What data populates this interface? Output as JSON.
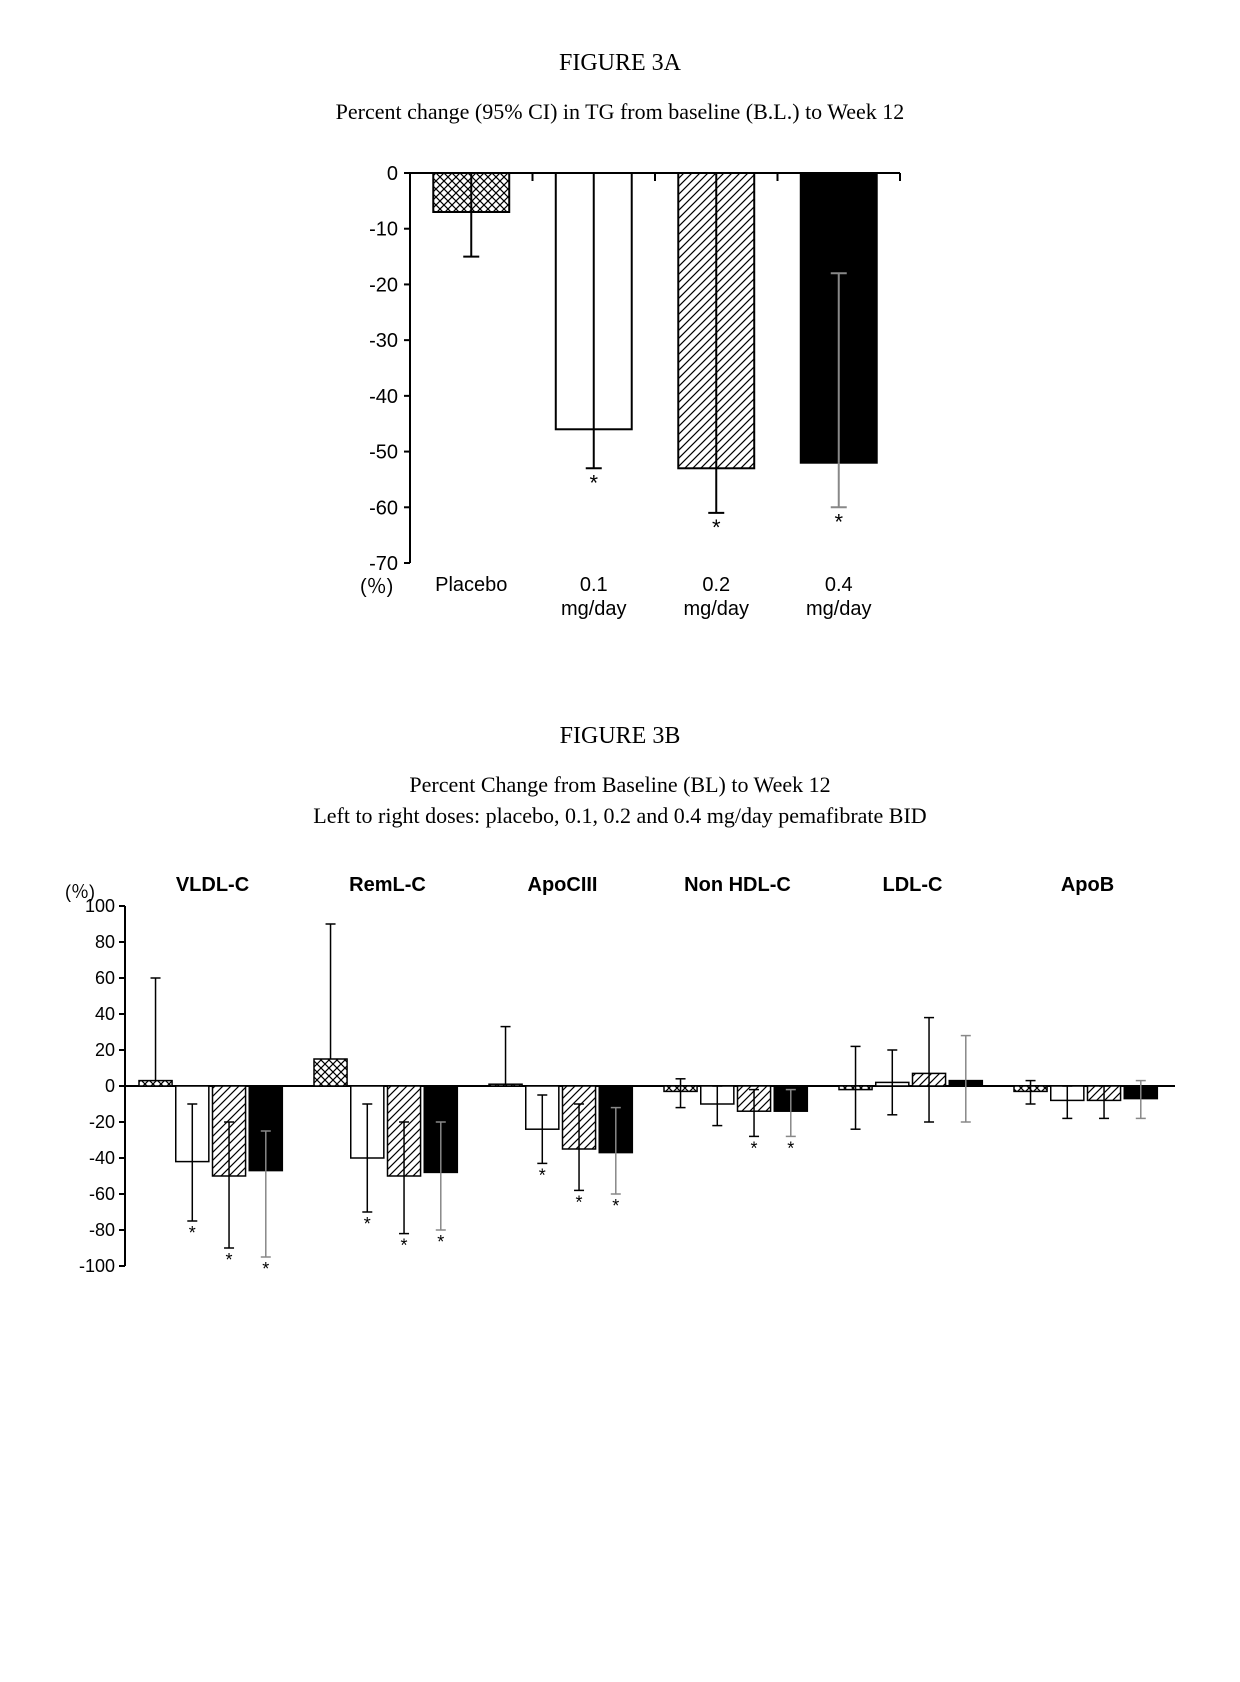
{
  "figureA": {
    "title": "FIGURE 3A",
    "caption": "Percent change (95% CI) in TG from baseline (B.L.) to Week 12",
    "type": "bar",
    "categories": [
      "Placebo",
      "0.1 mg/day",
      "0.2 mg/day",
      "0.4 mg/day"
    ],
    "values": [
      -7,
      -46,
      -53,
      -52
    ],
    "err_upper_to": [
      0,
      0,
      0,
      -18
    ],
    "err_lower_to": [
      -15,
      -53,
      -61,
      -60
    ],
    "significant": [
      false,
      true,
      true,
      true
    ],
    "fills": [
      "crosshatch",
      "white",
      "diag",
      "black"
    ],
    "ylim": [
      -70,
      0
    ],
    "ytick_step": 10,
    "ylabel_suffix": "(％)",
    "tick_fontsize": 20,
    "label_fontsize": 20,
    "bar_stroke": "#000000",
    "bar_stroke_width": 2,
    "axis_color": "#000000",
    "background_color": "#ffffff",
    "error_bar_color": "#000000",
    "error_bar_color_on_black": "#888888"
  },
  "figureB": {
    "title": "FIGURE 3B",
    "caption_line1": "Percent Change from Baseline (BL) to Week 12",
    "caption_line2": "Left to right doses: placebo, 0.1, 0.2 and 0.4 mg/day pemafibrate BID",
    "type": "grouped-bar",
    "groups": [
      "VLDL-C",
      "RemL-C",
      "ApoCIII",
      "Non HDL-C",
      "LDL-C",
      "ApoB"
    ],
    "dose_fills": [
      "crosshatch",
      "white",
      "diag",
      "black"
    ],
    "ylim": [
      -100,
      100
    ],
    "ytick_step": 20,
    "ylabel_suffix": "(％)",
    "tick_fontsize": 18,
    "group_label_fontsize": 20,
    "group_label_weight": "bold",
    "bar_stroke": "#000000",
    "axis_color": "#000000",
    "background_color": "#ffffff",
    "error_bar_color": "#000000",
    "error_bar_color_on_black": "#888888",
    "data": [
      {
        "values": [
          3,
          -42,
          -50,
          -47
        ],
        "err_upper_to": [
          60,
          -10,
          -20,
          -25
        ],
        "err_lower_to": [
          null,
          -75,
          -90,
          -95
        ],
        "sig": [
          false,
          true,
          true,
          true
        ]
      },
      {
        "values": [
          15,
          -40,
          -50,
          -48
        ],
        "err_upper_to": [
          90,
          -10,
          -20,
          -20
        ],
        "err_lower_to": [
          null,
          -70,
          -82,
          -80
        ],
        "sig": [
          false,
          true,
          true,
          true
        ]
      },
      {
        "values": [
          1,
          -24,
          -35,
          -37
        ],
        "err_upper_to": [
          33,
          -5,
          -10,
          -12
        ],
        "err_lower_to": [
          null,
          -43,
          -58,
          -60
        ],
        "sig": [
          false,
          true,
          true,
          true
        ]
      },
      {
        "values": [
          -3,
          -10,
          -14,
          -14
        ],
        "err_upper_to": [
          4,
          0,
          -2,
          -2
        ],
        "err_lower_to": [
          -12,
          -22,
          -28,
          -28
        ],
        "sig": [
          false,
          false,
          true,
          true
        ]
      },
      {
        "values": [
          -2,
          2,
          7,
          3
        ],
        "err_upper_to": [
          22,
          20,
          38,
          28
        ],
        "err_lower_to": [
          -24,
          -16,
          -20,
          -20
        ],
        "sig": [
          false,
          false,
          false,
          false
        ]
      },
      {
        "values": [
          -3,
          -8,
          -8,
          -7
        ],
        "err_upper_to": [
          3,
          0,
          0,
          3
        ],
        "err_lower_to": [
          -10,
          -18,
          -18,
          -18
        ],
        "sig": [
          false,
          false,
          false,
          false
        ]
      }
    ]
  },
  "patterns": {
    "crosshatch": {
      "stroke": "#000000",
      "bg": "#ffffff"
    },
    "diag": {
      "stroke": "#000000",
      "bg": "#ffffff"
    },
    "white": {
      "fill": "#ffffff"
    },
    "black": {
      "fill": "#000000"
    }
  }
}
